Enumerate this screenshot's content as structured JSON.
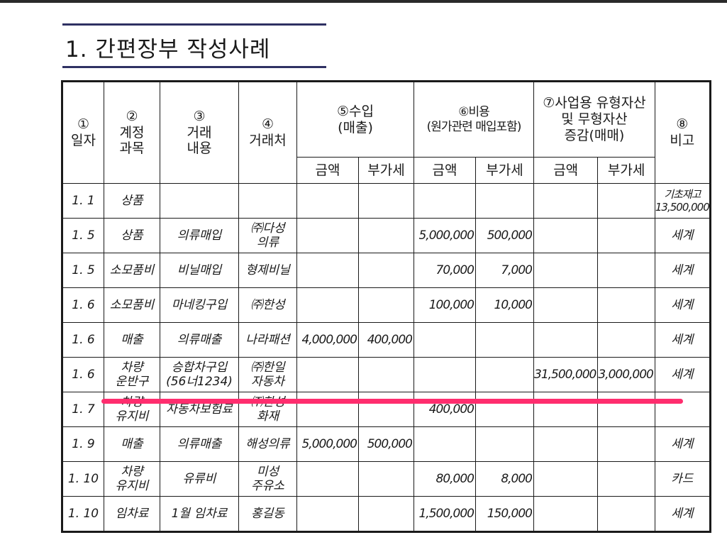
{
  "title": "1. 간편장부 작성사례",
  "header": {
    "date": "①\n일자",
    "account": "②\n계정\n과목",
    "content": "③\n거래\n내용",
    "partner": "④\n거래처",
    "income": "⑤수입\n(매출)",
    "expense": "⑥비용\n(원가관련 매입포함)",
    "assets": "⑦사업용 유형자산\n및 무형자산\n증감(매매)",
    "note": "⑧\n비고",
    "amount": "금액",
    "vat": "부가세"
  },
  "rows": [
    [
      "1. 1",
      "상품",
      "",
      "",
      "",
      "",
      "",
      "",
      "",
      "",
      "기초재고\n13,500,000"
    ],
    [
      "1. 5",
      "상품",
      "의류매입",
      "㈜다성\n의류",
      "",
      "",
      "5,000,000",
      "500,000",
      "",
      "",
      "세계"
    ],
    [
      "1. 5",
      "소모품비",
      "비닐매입",
      "형제비닐",
      "",
      "",
      "70,000",
      "7,000",
      "",
      "",
      "세계"
    ],
    [
      "1. 6",
      "소모품비",
      "마네킹구입",
      "㈜한성",
      "",
      "",
      "100,000",
      "10,000",
      "",
      "",
      "세계"
    ],
    [
      "1. 6",
      "매출",
      "의류매출",
      "나라패션",
      "4,000,000",
      "400,000",
      "",
      "",
      "",
      "",
      "세계"
    ],
    [
      "1. 6",
      "차량\n운반구",
      "승합차구입\n(56너1234)",
      "㈜한일\n자동차",
      "",
      "",
      "",
      "",
      "31,500,000",
      "3,000,000",
      "세계"
    ],
    [
      "1. 7",
      "차량\n유지비",
      "자동차보험료",
      "㈜한성\n화재",
      "",
      "",
      "400,000",
      "",
      "",
      "",
      ""
    ],
    [
      "1. 9",
      "매출",
      "의류매출",
      "해성의류",
      "5,000,000",
      "500,000",
      "",
      "",
      "",
      "",
      "세계"
    ],
    [
      "1. 10",
      "차량\n유지비",
      "유류비",
      "미성\n주유소",
      "",
      "",
      "80,000",
      "8,000",
      "",
      "",
      "카드"
    ],
    [
      "1. 10",
      "임차료",
      "1월 임차료",
      "홍길동",
      "",
      "",
      "1,500,000",
      "150,000",
      "",
      "",
      "세계"
    ]
  ],
  "colors": {
    "highlight": "#ff2d6e",
    "title_rule": "#2f3163"
  }
}
